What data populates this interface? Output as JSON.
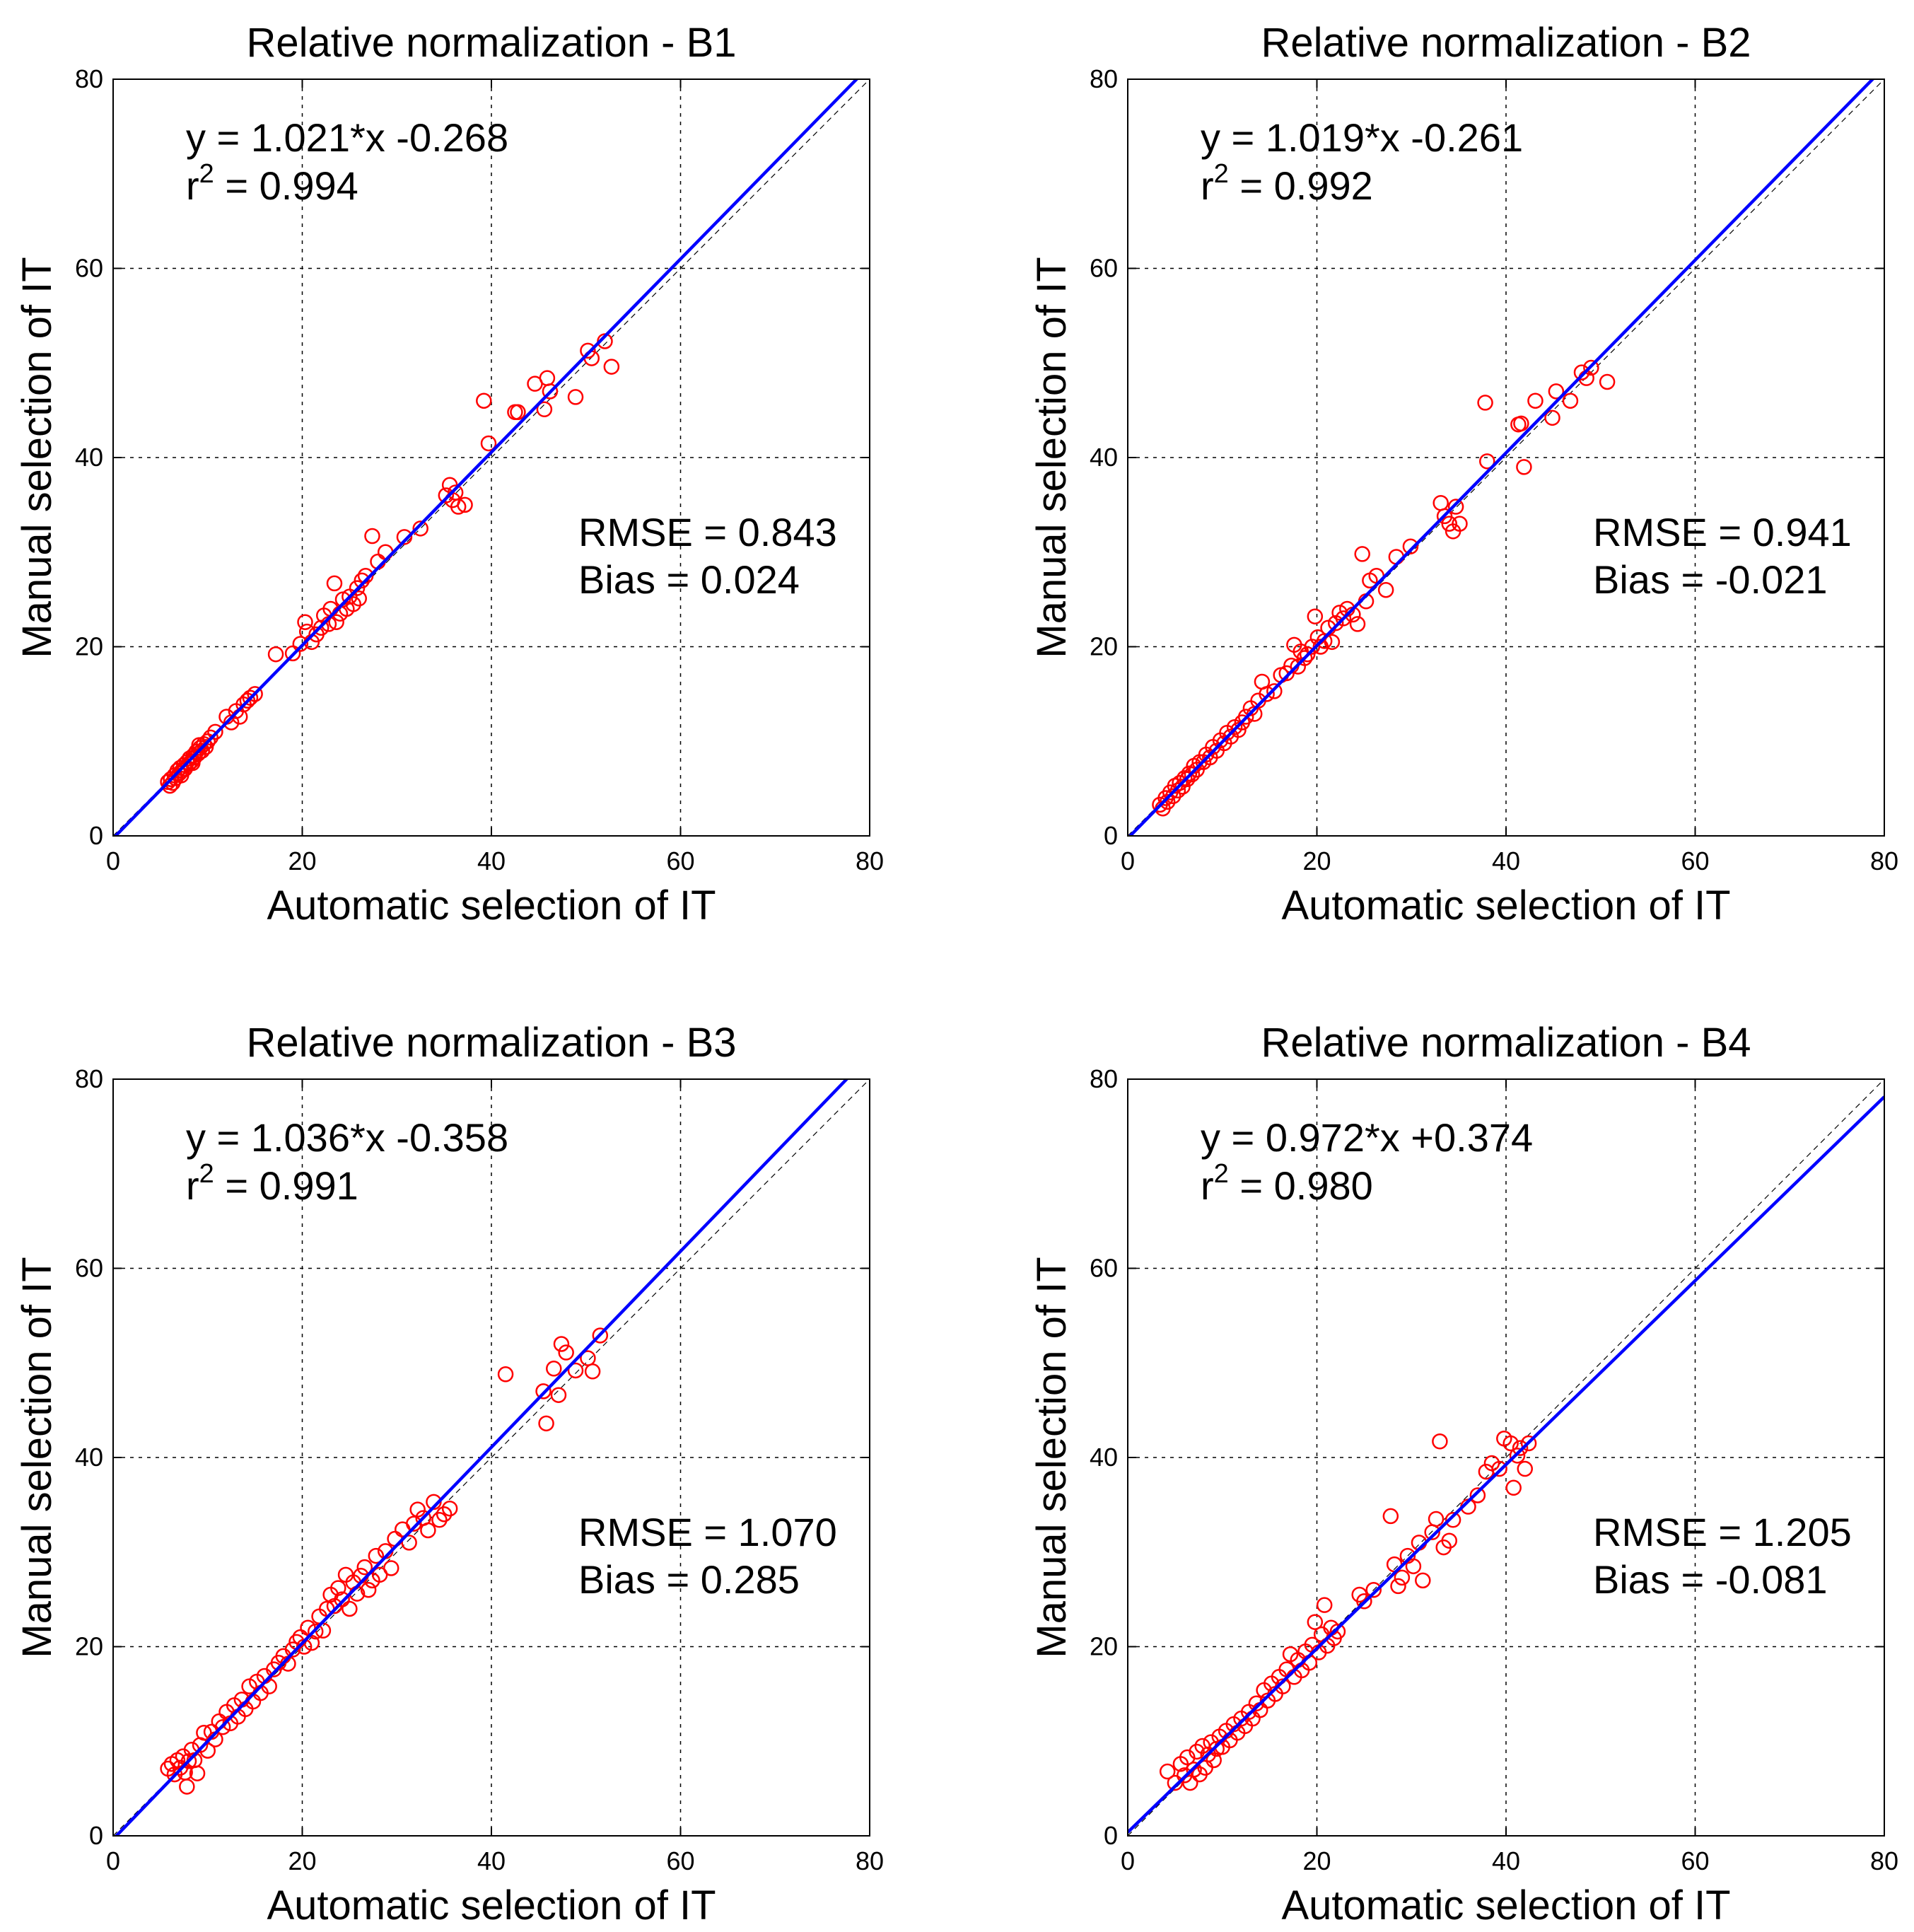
{
  "chart_data": [
    {
      "type": "scatter",
      "title": "Relative normalization - B1",
      "xlabel": "Automatic selection of IT",
      "ylabel": "Manual selection of IT",
      "xlim": [
        0,
        80
      ],
      "ylim": [
        0,
        80
      ],
      "xticks": [
        "0",
        "20",
        "40",
        "60",
        "80"
      ],
      "yticks": [
        "0",
        "20",
        "40",
        "60",
        "80"
      ],
      "grid": true,
      "equation": "y = 1.021*x -0.268",
      "r2_prefix": "r",
      "r2_sup": "2",
      "r2_value": " = 0.994",
      "rmse": "RMSE = 0.843",
      "bias": "Bias = 0.024",
      "fit": {
        "slope": 1.021,
        "intercept": -0.268
      },
      "points": [
        [
          5.8,
          5.7
        ],
        [
          6.1,
          6.0
        ],
        [
          6.3,
          5.6
        ],
        [
          6.5,
          6.4
        ],
        [
          6.6,
          6.1
        ],
        [
          6.8,
          6.9
        ],
        [
          7.0,
          6.6
        ],
        [
          7.1,
          7.2
        ],
        [
          7.3,
          6.9
        ],
        [
          7.5,
          7.5
        ],
        [
          7.6,
          7.1
        ],
        [
          7.8,
          7.8
        ],
        [
          8.0,
          7.6
        ],
        [
          8.1,
          8.2
        ],
        [
          8.3,
          7.9
        ],
        [
          8.5,
          8.5
        ],
        [
          8.6,
          8.3
        ],
        [
          8.8,
          8.9
        ],
        [
          9.0,
          8.7
        ],
        [
          9.2,
          9.3
        ],
        [
          9.4,
          9.0
        ],
        [
          9.6,
          9.7
        ],
        [
          9.8,
          9.4
        ],
        [
          10.0,
          10.0
        ],
        [
          6.0,
          5.3
        ],
        [
          7.2,
          6.4
        ],
        [
          8.4,
          7.7
        ],
        [
          9.1,
          9.6
        ],
        [
          10.3,
          10.4
        ],
        [
          10.8,
          11.0
        ],
        [
          12.0,
          12.6
        ],
        [
          12.5,
          12.0
        ],
        [
          13.0,
          13.2
        ],
        [
          13.4,
          12.6
        ],
        [
          13.8,
          13.9
        ],
        [
          14.2,
          14.3
        ],
        [
          14.5,
          14.6
        ],
        [
          15.0,
          15.0
        ],
        [
          17.2,
          19.2
        ],
        [
          19.0,
          19.3
        ],
        [
          19.8,
          20.3
        ],
        [
          20.3,
          22.6
        ],
        [
          20.5,
          21.6
        ],
        [
          21.0,
          20.5
        ],
        [
          21.5,
          21.3
        ],
        [
          22.0,
          22.0
        ],
        [
          22.3,
          23.3
        ],
        [
          22.8,
          22.4
        ],
        [
          23.0,
          24.0
        ],
        [
          23.4,
          26.7
        ],
        [
          23.6,
          22.6
        ],
        [
          24.0,
          23.5
        ],
        [
          24.3,
          25.0
        ],
        [
          24.7,
          24.0
        ],
        [
          25.0,
          25.3
        ],
        [
          25.4,
          24.5
        ],
        [
          25.8,
          26.2
        ],
        [
          26.0,
          25.1
        ],
        [
          26.3,
          27.0
        ],
        [
          26.7,
          27.5
        ],
        [
          27.4,
          31.7
        ],
        [
          28.0,
          29.0
        ],
        [
          28.8,
          30.0
        ],
        [
          30.8,
          31.6
        ],
        [
          32.5,
          32.5
        ],
        [
          35.2,
          36.0
        ],
        [
          35.6,
          37.1
        ],
        [
          35.9,
          35.5
        ],
        [
          36.2,
          36.3
        ],
        [
          36.5,
          34.8
        ],
        [
          37.2,
          35.0
        ],
        [
          39.2,
          46.0
        ],
        [
          39.7,
          41.5
        ],
        [
          42.5,
          44.8
        ],
        [
          42.8,
          44.8
        ],
        [
          44.6,
          47.8
        ],
        [
          45.6,
          45.1
        ],
        [
          45.9,
          48.4
        ],
        [
          46.2,
          47.0
        ],
        [
          48.9,
          46.4
        ],
        [
          50.2,
          51.3
        ],
        [
          50.6,
          50.5
        ],
        [
          52.0,
          52.3
        ],
        [
          52.7,
          49.6
        ]
      ]
    },
    {
      "type": "scatter",
      "title": "Relative normalization - B2",
      "xlabel": "Automatic selection of IT",
      "ylabel": "Manual selection of IT",
      "xlim": [
        0,
        80
      ],
      "ylim": [
        0,
        80
      ],
      "xticks": [
        "0",
        "20",
        "40",
        "60",
        "80"
      ],
      "yticks": [
        "0",
        "20",
        "40",
        "60",
        "80"
      ],
      "grid": true,
      "equation": "y = 1.019*x -0.261",
      "r2_prefix": "r",
      "r2_sup": "2",
      "r2_value": " = 0.992",
      "rmse": "RMSE = 0.941",
      "bias": "Bias = -0.021",
      "fit": {
        "slope": 1.019,
        "intercept": -0.261
      },
      "points": [
        [
          3.4,
          3.3
        ],
        [
          3.7,
          2.9
        ],
        [
          4.0,
          4.0
        ],
        [
          4.2,
          3.6
        ],
        [
          4.5,
          4.6
        ],
        [
          4.8,
          4.2
        ],
        [
          5.0,
          5.3
        ],
        [
          5.3,
          4.8
        ],
        [
          5.5,
          5.6
        ],
        [
          5.8,
          5.2
        ],
        [
          6.0,
          6.1
        ],
        [
          6.3,
          6.0
        ],
        [
          6.5,
          6.6
        ],
        [
          6.8,
          6.5
        ],
        [
          7.0,
          7.4
        ],
        [
          7.3,
          7.0
        ],
        [
          7.6,
          7.8
        ],
        [
          8.0,
          7.8
        ],
        [
          8.3,
          8.6
        ],
        [
          8.7,
          8.3
        ],
        [
          9.0,
          9.4
        ],
        [
          9.4,
          9.0
        ],
        [
          9.8,
          10.1
        ],
        [
          10.2,
          9.8
        ],
        [
          10.5,
          10.9
        ],
        [
          10.9,
          10.5
        ],
        [
          11.3,
          11.5
        ],
        [
          11.7,
          11.2
        ],
        [
          12.1,
          12.0
        ],
        [
          12.5,
          12.6
        ],
        [
          13.0,
          13.5
        ],
        [
          13.4,
          12.9
        ],
        [
          13.8,
          14.3
        ],
        [
          14.2,
          16.3
        ],
        [
          14.7,
          15.0
        ],
        [
          15.5,
          15.3
        ],
        [
          16.2,
          17.0
        ],
        [
          16.8,
          17.2
        ],
        [
          17.3,
          18.0
        ],
        [
          17.6,
          20.2
        ],
        [
          18.0,
          17.9
        ],
        [
          18.3,
          19.5
        ],
        [
          18.7,
          18.8
        ],
        [
          19.0,
          19.2
        ],
        [
          19.5,
          20.0
        ],
        [
          19.8,
          23.2
        ],
        [
          20.1,
          21.0
        ],
        [
          20.4,
          20.0
        ],
        [
          20.8,
          20.6
        ],
        [
          21.2,
          22.0
        ],
        [
          21.6,
          20.5
        ],
        [
          22.0,
          22.5
        ],
        [
          22.4,
          23.6
        ],
        [
          22.8,
          23.0
        ],
        [
          23.2,
          24.0
        ],
        [
          23.8,
          23.4
        ],
        [
          24.3,
          22.4
        ],
        [
          24.8,
          29.8
        ],
        [
          25.2,
          24.8
        ],
        [
          25.6,
          27.0
        ],
        [
          26.3,
          27.5
        ],
        [
          27.3,
          26.0
        ],
        [
          28.4,
          29.5
        ],
        [
          29.9,
          30.6
        ],
        [
          33.1,
          35.2
        ],
        [
          33.5,
          33.8
        ],
        [
          34.0,
          33.0
        ],
        [
          34.4,
          32.2
        ],
        [
          34.7,
          34.8
        ],
        [
          35.1,
          33.0
        ],
        [
          37.8,
          45.8
        ],
        [
          38.0,
          39.6
        ],
        [
          41.3,
          43.5
        ],
        [
          41.6,
          43.6
        ],
        [
          41.9,
          39.0
        ],
        [
          43.1,
          46.0
        ],
        [
          44.9,
          44.2
        ],
        [
          45.3,
          47.0
        ],
        [
          46.8,
          46.0
        ],
        [
          48.0,
          49.0
        ],
        [
          48.5,
          48.4
        ],
        [
          49.0,
          49.5
        ],
        [
          50.7,
          48.0
        ]
      ]
    },
    {
      "type": "scatter",
      "title": "Relative normalization - B3",
      "xlabel": "Automatic selection of IT",
      "ylabel": "Manual selection of IT",
      "xlim": [
        0,
        80
      ],
      "ylim": [
        0,
        80
      ],
      "xticks": [
        "0",
        "20",
        "40",
        "60",
        "80"
      ],
      "yticks": [
        "0",
        "20",
        "40",
        "60",
        "80"
      ],
      "grid": true,
      "equation": "y = 1.036*x -0.358",
      "r2_prefix": "r",
      "r2_sup": "2",
      "r2_value": " = 0.991",
      "rmse": "RMSE = 1.070",
      "bias": "Bias = 0.285",
      "fit": {
        "slope": 1.036,
        "intercept": -0.358
      },
      "points": [
        [
          5.8,
          7.1
        ],
        [
          6.2,
          7.6
        ],
        [
          6.5,
          6.5
        ],
        [
          6.8,
          8.0
        ],
        [
          7.1,
          7.2
        ],
        [
          7.4,
          8.4
        ],
        [
          7.6,
          6.7
        ],
        [
          7.8,
          5.2
        ],
        [
          8.0,
          7.9
        ],
        [
          8.3,
          9.1
        ],
        [
          8.6,
          8.0
        ],
        [
          8.9,
          6.6
        ],
        [
          9.2,
          9.6
        ],
        [
          9.6,
          10.9
        ],
        [
          10.0,
          9.0
        ],
        [
          10.4,
          11.0
        ],
        [
          10.8,
          10.2
        ],
        [
          11.2,
          12.1
        ],
        [
          11.6,
          11.5
        ],
        [
          12.0,
          13.1
        ],
        [
          12.4,
          11.9
        ],
        [
          12.8,
          13.8
        ],
        [
          13.2,
          12.6
        ],
        [
          13.6,
          14.4
        ],
        [
          14.0,
          13.4
        ],
        [
          14.4,
          15.8
        ],
        [
          14.8,
          14.2
        ],
        [
          15.2,
          16.3
        ],
        [
          15.6,
          15.1
        ],
        [
          16.0,
          16.9
        ],
        [
          16.5,
          15.8
        ],
        [
          17.0,
          17.6
        ],
        [
          17.5,
          18.3
        ],
        [
          18.0,
          19.0
        ],
        [
          18.5,
          18.2
        ],
        [
          19.0,
          19.7
        ],
        [
          19.4,
          20.5
        ],
        [
          19.8,
          21.0
        ],
        [
          20.2,
          20.0
        ],
        [
          20.6,
          22.0
        ],
        [
          21.0,
          20.4
        ],
        [
          21.4,
          21.6
        ],
        [
          21.8,
          23.2
        ],
        [
          22.2,
          21.7
        ],
        [
          22.6,
          24.0
        ],
        [
          23.0,
          25.5
        ],
        [
          23.4,
          24.3
        ],
        [
          23.8,
          26.2
        ],
        [
          24.2,
          25.0
        ],
        [
          24.6,
          27.6
        ],
        [
          25.0,
          24.0
        ],
        [
          25.4,
          26.8
        ],
        [
          25.8,
          25.6
        ],
        [
          26.2,
          27.5
        ],
        [
          26.6,
          28.4
        ],
        [
          27.0,
          26.0
        ],
        [
          27.4,
          27.0
        ],
        [
          27.8,
          29.6
        ],
        [
          28.2,
          27.6
        ],
        [
          28.8,
          30.1
        ],
        [
          29.4,
          28.3
        ],
        [
          29.8,
          31.4
        ],
        [
          30.6,
          32.4
        ],
        [
          31.3,
          31.0
        ],
        [
          31.8,
          33.0
        ],
        [
          32.2,
          34.5
        ],
        [
          32.8,
          33.6
        ],
        [
          33.3,
          32.3
        ],
        [
          33.9,
          35.3
        ],
        [
          34.5,
          33.4
        ],
        [
          35.0,
          34.0
        ],
        [
          35.6,
          34.6
        ],
        [
          41.5,
          48.8
        ],
        [
          45.5,
          47.0
        ],
        [
          45.8,
          43.6
        ],
        [
          46.6,
          49.4
        ],
        [
          47.1,
          46.6
        ],
        [
          47.4,
          52.0
        ],
        [
          47.9,
          51.1
        ],
        [
          48.9,
          49.2
        ],
        [
          50.2,
          50.5
        ],
        [
          50.7,
          49.1
        ],
        [
          51.5,
          52.9
        ]
      ]
    },
    {
      "type": "scatter",
      "title": "Relative normalization - B4",
      "xlabel": "Automatic selection of IT",
      "ylabel": "Manual selection of IT",
      "xlim": [
        0,
        80
      ],
      "ylim": [
        0,
        80
      ],
      "xticks": [
        "0",
        "20",
        "40",
        "60",
        "80"
      ],
      "yticks": [
        "0",
        "20",
        "40",
        "60",
        "80"
      ],
      "grid": true,
      "equation": "y = 0.972*x +0.374",
      "r2_prefix": "r",
      "r2_sup": "2",
      "r2_value": " = 0.980",
      "rmse": "RMSE = 1.205",
      "bias": "Bias = -0.081",
      "fit": {
        "slope": 0.972,
        "intercept": 0.374
      },
      "points": [
        [
          4.2,
          6.8
        ],
        [
          5.0,
          5.6
        ],
        [
          5.6,
          7.6
        ],
        [
          6.0,
          6.4
        ],
        [
          6.3,
          8.3
        ],
        [
          6.6,
          5.6
        ],
        [
          7.0,
          7.0
        ],
        [
          7.3,
          8.9
        ],
        [
          7.6,
          6.5
        ],
        [
          7.9,
          9.5
        ],
        [
          8.2,
          7.2
        ],
        [
          8.5,
          8.6
        ],
        [
          8.8,
          9.9
        ],
        [
          9.1,
          8.0
        ],
        [
          9.4,
          9.2
        ],
        [
          9.7,
          10.5
        ],
        [
          10.0,
          9.4
        ],
        [
          10.4,
          11.1
        ],
        [
          10.8,
          10.1
        ],
        [
          11.2,
          11.8
        ],
        [
          11.6,
          10.9
        ],
        [
          12.0,
          12.4
        ],
        [
          12.4,
          11.6
        ],
        [
          12.8,
          13.1
        ],
        [
          13.2,
          12.4
        ],
        [
          13.6,
          14.0
        ],
        [
          14.0,
          13.3
        ],
        [
          14.4,
          15.4
        ],
        [
          14.8,
          14.3
        ],
        [
          15.2,
          16.1
        ],
        [
          15.6,
          15.0
        ],
        [
          16.0,
          16.8
        ],
        [
          16.4,
          15.8
        ],
        [
          16.8,
          17.6
        ],
        [
          17.2,
          19.2
        ],
        [
          17.6,
          16.8
        ],
        [
          18.0,
          18.6
        ],
        [
          18.4,
          17.5
        ],
        [
          18.8,
          19.5
        ],
        [
          19.2,
          18.3
        ],
        [
          19.5,
          20.2
        ],
        [
          19.8,
          22.6
        ],
        [
          20.2,
          19.4
        ],
        [
          20.5,
          21.3
        ],
        [
          20.8,
          24.4
        ],
        [
          21.1,
          20.1
        ],
        [
          21.5,
          22.0
        ],
        [
          21.8,
          20.9
        ],
        [
          22.2,
          21.6
        ],
        [
          24.5,
          25.5
        ],
        [
          25.0,
          24.8
        ],
        [
          26.0,
          26.0
        ],
        [
          27.8,
          33.8
        ],
        [
          28.2,
          28.7
        ],
        [
          28.6,
          26.4
        ],
        [
          29.0,
          27.3
        ],
        [
          29.6,
          29.6
        ],
        [
          30.2,
          28.5
        ],
        [
          30.8,
          31.0
        ],
        [
          31.2,
          27.0
        ],
        [
          32.2,
          32.1
        ],
        [
          32.6,
          33.5
        ],
        [
          33.0,
          41.7
        ],
        [
          33.4,
          30.5
        ],
        [
          34.0,
          31.2
        ],
        [
          34.4,
          33.4
        ],
        [
          36.0,
          34.8
        ],
        [
          37.0,
          36.0
        ],
        [
          37.9,
          38.5
        ],
        [
          38.5,
          39.4
        ],
        [
          39.3,
          38.8
        ],
        [
          39.8,
          42.0
        ],
        [
          40.5,
          41.5
        ],
        [
          40.8,
          36.8
        ],
        [
          41.2,
          40.2
        ],
        [
          41.5,
          41.0
        ],
        [
          42.0,
          38.8
        ],
        [
          42.4,
          41.5
        ]
      ]
    }
  ]
}
